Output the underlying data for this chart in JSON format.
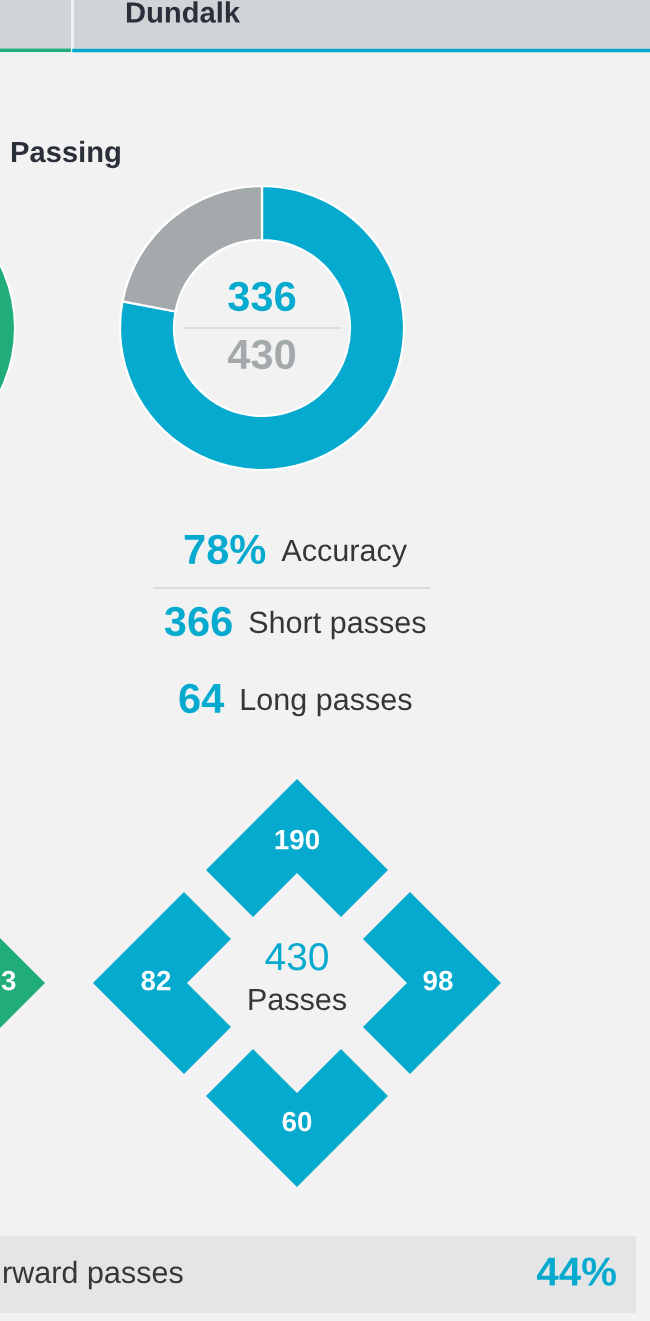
{
  "chart_data": [
    {
      "type": "other",
      "title": "Dundalk",
      "color": "#06aacf"
    },
    {
      "type": "other",
      "color": "#20ad7a",
      "annotations": [
        "3"
      ]
    },
    {
      "type": "donut",
      "title": "Passing",
      "categories": [
        null,
        null
      ],
      "values": [
        78,
        22
      ],
      "colors": [
        "#06aacf",
        "#a4a9ac"
      ],
      "annotations": [
        "336",
        "430"
      ]
    },
    {
      "type": "other",
      "categories": [
        "Accuracy",
        "Short passes",
        "Long passes"
      ],
      "value_labels": [
        "78%",
        "366",
        "64"
      ],
      "color": "#06aacf"
    },
    {
      "type": "other",
      "categories": [
        null,
        null,
        null,
        null
      ],
      "value_labels": [
        "190",
        "98",
        "60",
        "82"
      ],
      "color": "#06aacf",
      "annotations": [
        "430",
        "Passes"
      ]
    },
    {
      "type": "other",
      "categories": [
        "rward passes"
      ],
      "value_labels": [
        "44%"
      ],
      "color": "#06aacf"
    }
  ]
}
